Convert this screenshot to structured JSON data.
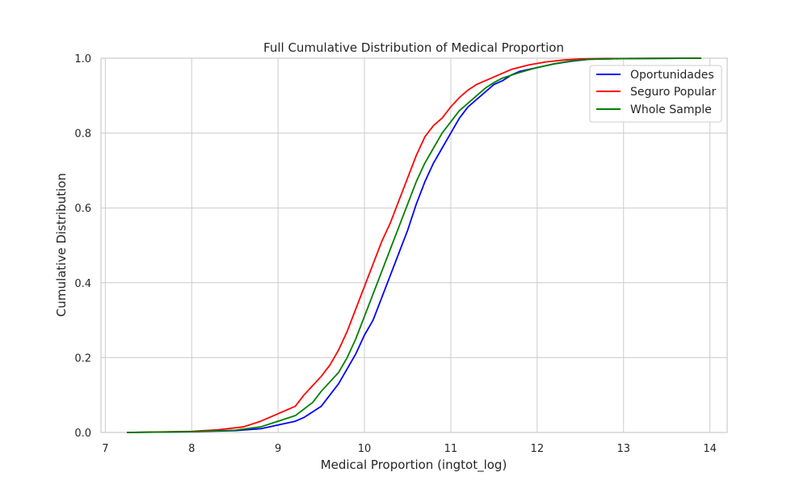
{
  "chart_data": {
    "type": "line",
    "title": "Full Cumulative Distribution of Medical Proportion",
    "xlabel": "Medical Proportion (ingtot_log)",
    "ylabel": "Cumulative Distribution",
    "xlim": [
      6.95,
      14.2
    ],
    "ylim": [
      0,
      1
    ],
    "xticks": [
      7,
      8,
      9,
      10,
      11,
      12,
      13,
      14
    ],
    "yticks": [
      0.0,
      0.2,
      0.4,
      0.6,
      0.8,
      1.0
    ],
    "ytick_labels": [
      "0.0",
      "0.2",
      "0.4",
      "0.6",
      "0.8",
      "1.0"
    ],
    "grid": true,
    "legend_position": "top-right",
    "series": [
      {
        "name": "Oportunidades",
        "color": "#0000ff",
        "x": [
          7.25,
          8.0,
          8.5,
          8.8,
          9.0,
          9.2,
          9.3,
          9.5,
          9.6,
          9.7,
          9.8,
          9.9,
          10.0,
          10.1,
          10.2,
          10.3,
          10.4,
          10.5,
          10.6,
          10.7,
          10.8,
          10.9,
          11.0,
          11.1,
          11.2,
          11.3,
          11.4,
          11.5,
          11.6,
          11.7,
          11.8,
          12.0,
          12.2,
          12.4,
          12.6,
          13.0,
          13.9
        ],
        "y": [
          0.0,
          0.002,
          0.005,
          0.01,
          0.02,
          0.03,
          0.04,
          0.07,
          0.1,
          0.13,
          0.17,
          0.21,
          0.26,
          0.3,
          0.36,
          0.42,
          0.48,
          0.54,
          0.61,
          0.67,
          0.72,
          0.76,
          0.8,
          0.84,
          0.87,
          0.89,
          0.91,
          0.93,
          0.94,
          0.955,
          0.965,
          0.975,
          0.985,
          0.992,
          0.997,
          0.999,
          1.0
        ]
      },
      {
        "name": "Seguro Popular",
        "color": "#ff0000",
        "x": [
          7.25,
          8.0,
          8.3,
          8.6,
          8.8,
          9.0,
          9.2,
          9.3,
          9.5,
          9.6,
          9.7,
          9.8,
          9.9,
          10.0,
          10.1,
          10.2,
          10.3,
          10.4,
          10.5,
          10.6,
          10.7,
          10.8,
          10.9,
          11.0,
          11.1,
          11.2,
          11.3,
          11.5,
          11.7,
          11.9,
          12.1,
          12.3,
          12.5,
          12.8,
          13.9
        ],
        "y": [
          0.0,
          0.003,
          0.007,
          0.015,
          0.03,
          0.05,
          0.07,
          0.1,
          0.15,
          0.18,
          0.22,
          0.27,
          0.33,
          0.39,
          0.45,
          0.51,
          0.56,
          0.62,
          0.68,
          0.74,
          0.79,
          0.82,
          0.84,
          0.87,
          0.895,
          0.915,
          0.93,
          0.95,
          0.97,
          0.982,
          0.99,
          0.995,
          0.998,
          0.999,
          1.0
        ]
      },
      {
        "name": "Whole Sample",
        "color": "#008000",
        "x": [
          7.25,
          8.0,
          8.5,
          8.8,
          9.0,
          9.2,
          9.4,
          9.5,
          9.7,
          9.8,
          9.9,
          10.0,
          10.1,
          10.2,
          10.3,
          10.4,
          10.5,
          10.6,
          10.7,
          10.8,
          10.9,
          11.0,
          11.1,
          11.2,
          11.3,
          11.4,
          11.5,
          11.6,
          11.8,
          12.0,
          12.2,
          12.4,
          12.6,
          13.0,
          13.9
        ],
        "y": [
          0.0,
          0.002,
          0.006,
          0.015,
          0.03,
          0.045,
          0.08,
          0.11,
          0.16,
          0.2,
          0.25,
          0.31,
          0.37,
          0.43,
          0.49,
          0.55,
          0.61,
          0.67,
          0.72,
          0.76,
          0.8,
          0.83,
          0.86,
          0.88,
          0.9,
          0.92,
          0.935,
          0.947,
          0.962,
          0.975,
          0.985,
          0.993,
          0.997,
          0.999,
          1.0
        ]
      }
    ]
  }
}
